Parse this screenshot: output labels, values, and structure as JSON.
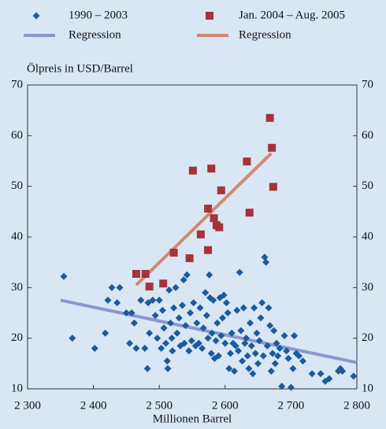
{
  "chart_data": {
    "type": "scatter",
    "ylabel": "Ölpreis in USD/Barrel",
    "xlabel": "Millionen Barrel",
    "xlim": [
      2300,
      2800
    ],
    "xticks": [
      {
        "value": 2300,
        "label": "2 300"
      },
      {
        "value": 2400,
        "label": "2 400"
      },
      {
        "value": 2500,
        "label": "2 500"
      },
      {
        "value": 2600,
        "label": "2 600"
      },
      {
        "value": 2700,
        "label": "2 700"
      },
      {
        "value": 2800,
        "label": "2 800"
      }
    ],
    "ylim": [
      10,
      70
    ],
    "yticks": [
      10,
      20,
      30,
      40,
      50,
      60,
      70
    ],
    "series": [
      {
        "name": "1990 – 2003",
        "type": "scatter",
        "marker": "diamond",
        "color": "#1b5a9c",
        "x": [
          2355,
          2368,
          2402,
          2418,
          2422,
          2428,
          2436,
          2440,
          2450,
          2455,
          2458,
          2462,
          2465,
          2472,
          2478,
          2482,
          2483,
          2485,
          2490,
          2494,
          2497,
          2500,
          2503,
          2505,
          2507,
          2510,
          2512,
          2513,
          2515,
          2517,
          2519,
          2520,
          2522,
          2525,
          2527,
          2530,
          2532,
          2535,
          2537,
          2538,
          2540,
          2542,
          2545,
          2547,
          2549,
          2552,
          2555,
          2557,
          2560,
          2562,
          2565,
          2567,
          2570,
          2572,
          2574,
          2576,
          2577,
          2579,
          2580,
          2582,
          2584,
          2586,
          2588,
          2590,
          2592,
          2594,
          2596,
          2598,
          2600,
          2602,
          2604,
          2606,
          2608,
          2610,
          2612,
          2614,
          2616,
          2618,
          2620,
          2622,
          2624,
          2626,
          2628,
          2630,
          2632,
          2634,
          2636,
          2638,
          2640,
          2642,
          2644,
          2646,
          2648,
          2650,
          2652,
          2654,
          2656,
          2658,
          2660,
          2662,
          2664,
          2666,
          2668,
          2670,
          2672,
          2674,
          2676,
          2678,
          2680,
          2683,
          2686,
          2690,
          2693,
          2696,
          2700,
          2703,
          2705,
          2708,
          2712,
          2718,
          2732,
          2745,
          2752,
          2758,
          2772,
          2775,
          2778,
          2795
        ],
        "values": [
          32.2,
          20,
          18,
          21,
          27.5,
          30,
          27,
          30,
          25,
          19,
          25,
          23,
          18,
          27.5,
          18,
          14,
          27,
          21,
          27.5,
          24.5,
          20,
          27.5,
          18,
          25.5,
          22,
          19,
          15.5,
          14,
          29.5,
          23,
          20,
          17.5,
          26,
          30,
          21,
          24,
          18.5,
          26.5,
          31.5,
          19,
          22.5,
          32.5,
          17.5,
          25,
          19.5,
          27,
          18.5,
          23,
          19,
          26,
          18,
          22,
          29,
          24.5,
          20,
          32.5,
          28,
          17,
          21,
          27.5,
          16,
          19.5,
          23,
          16.5,
          28,
          20.5,
          24,
          28.5,
          19,
          27,
          25,
          14,
          17,
          21,
          19,
          13.5,
          18.5,
          25.5,
          17.5,
          33,
          21.5,
          15.5,
          26,
          19,
          20,
          16.5,
          14,
          23,
          18.5,
          13,
          26,
          17,
          21,
          15,
          19.5,
          24,
          27,
          16.5,
          36,
          35,
          18.5,
          26,
          22.5,
          13.5,
          17,
          21.5,
          15,
          19,
          16.5,
          18,
          10.5,
          20.5,
          17.5,
          16,
          10.3,
          14,
          20.5,
          17,
          16.5,
          15.5,
          13,
          13,
          11.5,
          12,
          13.5,
          14,
          13.5,
          12.5
        ]
      },
      {
        "name": "Jan. 2004 – Aug. 2005",
        "type": "scatter",
        "marker": "square",
        "color": "#a5343a",
        "x": [
          2465,
          2479,
          2485,
          2506,
          2522,
          2546,
          2551,
          2563,
          2574,
          2574,
          2579,
          2583,
          2587,
          2591,
          2594,
          2633,
          2637,
          2668,
          2671,
          2673
        ],
        "values": [
          32.7,
          32.7,
          30.2,
          30.8,
          36.9,
          35.8,
          53.1,
          40.5,
          45.6,
          37.4,
          53.5,
          43.7,
          42.3,
          41.9,
          49.2,
          54.9,
          44.8,
          63.5,
          57.6,
          49.9
        ]
      },
      {
        "name": "Regression",
        "type": "line",
        "color": "#8c96cf",
        "x": [
          2350,
          2800
        ],
        "values": [
          27.5,
          15.2
        ]
      },
      {
        "name": "Regression",
        "type": "line",
        "color": "#cf8a72",
        "x": [
          2465,
          2670
        ],
        "values": [
          30.5,
          56.5
        ]
      }
    ]
  }
}
